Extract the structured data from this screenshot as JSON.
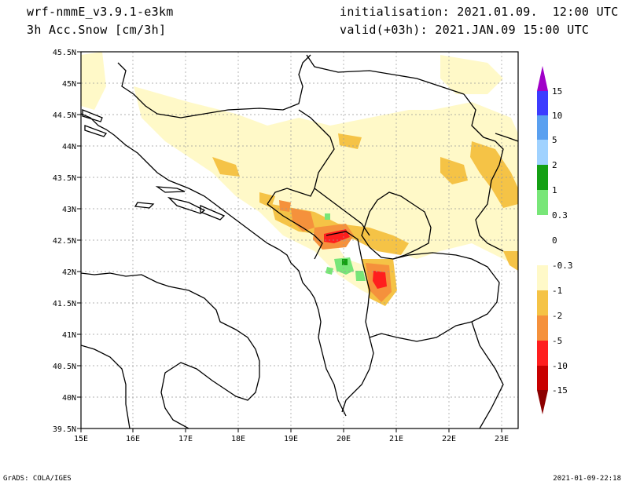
{
  "header": {
    "model": "wrf-nmmE_v3.9.1-e3km",
    "field": "3h Acc.Snow [cm/3h]",
    "init": "initialisation: 2021.01.09.  12:00 UTC",
    "valid": "valid(+03h): 2021.JAN.09 15:00 UTC"
  },
  "footer": {
    "credit": "GrADS: COLA/IGES",
    "timestamp": "2021-01-09-22:18"
  },
  "axes": {
    "lat_labels": [
      "45.5N",
      "45N",
      "44.5N",
      "44N",
      "43.5N",
      "43N",
      "42.5N",
      "42N",
      "41.5N",
      "41N",
      "40.5N",
      "40N",
      "39.5N"
    ],
    "lat_values": [
      45.5,
      45,
      44.5,
      44,
      43.5,
      43,
      42.5,
      42,
      41.5,
      41,
      40.5,
      40,
      39.5
    ],
    "lon_labels": [
      "15E",
      "16E",
      "17E",
      "18E",
      "19E",
      "20E",
      "21E",
      "22E",
      "23E"
    ],
    "lon_values": [
      15,
      16,
      17,
      18,
      19,
      20,
      21,
      22,
      23
    ],
    "lon_range": [
      15,
      23.3
    ],
    "lat_range": [
      39.5,
      45.5
    ]
  },
  "legend": {
    "colors": [
      "#a000c8",
      "#3c3cff",
      "#5aa0f0",
      "#a0d2ff",
      "#14a014",
      "#78e678",
      "#ffffff",
      "#ffffff",
      "#fff9c8",
      "#f5c346",
      "#f5913c",
      "#ff1e1e",
      "#c80000",
      "#8c0000"
    ],
    "labels": [
      "15",
      "10",
      "5",
      "2",
      "1",
      "0.3",
      "0",
      "-0.3",
      "-1",
      "-2",
      "-5",
      "-10",
      "-15"
    ]
  }
}
